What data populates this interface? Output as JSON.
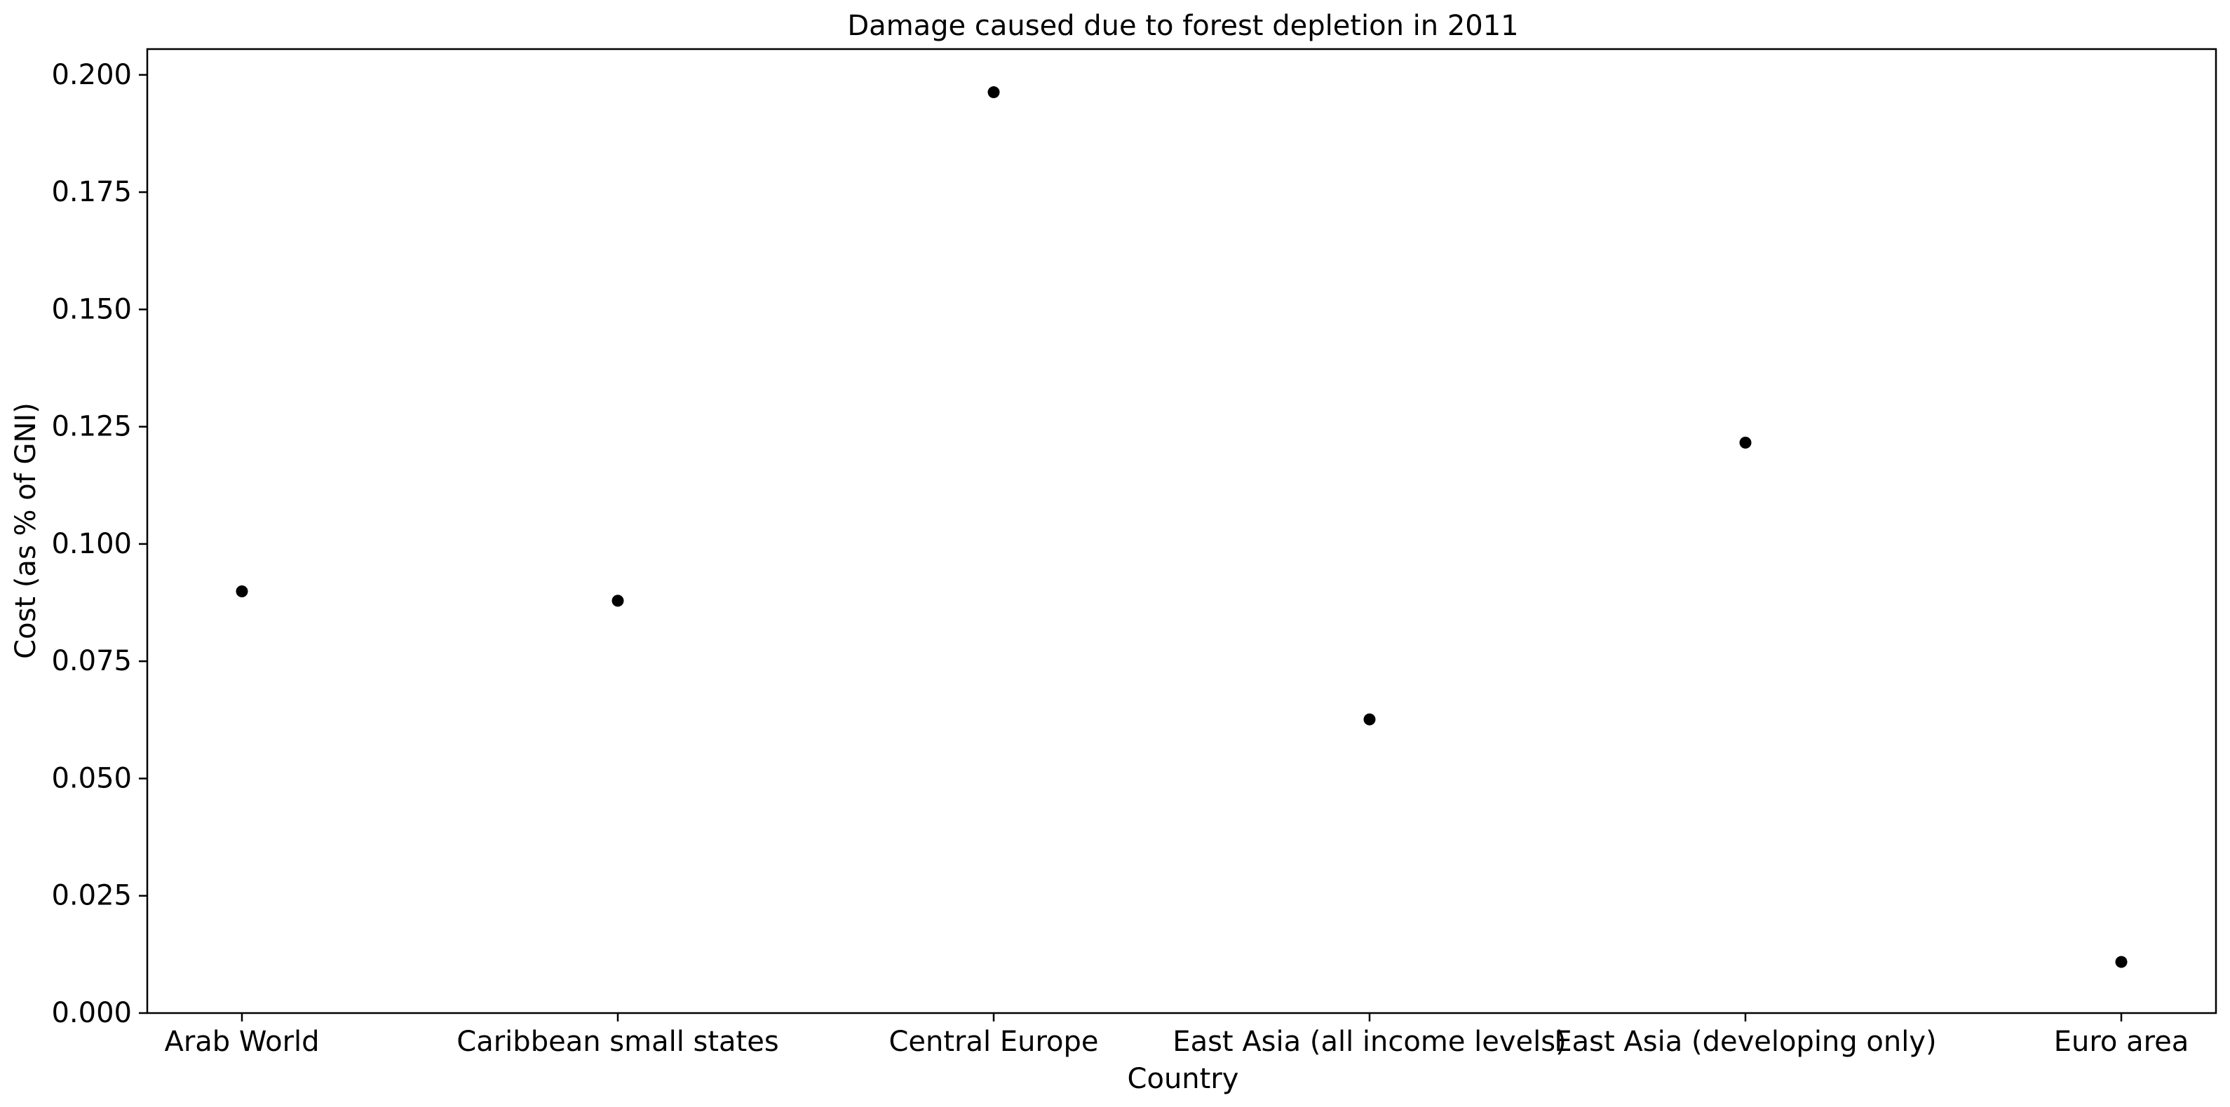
{
  "chart_data": {
    "type": "scatter",
    "title": "Damage caused due to forest depletion in 2011",
    "xlabel": "Country",
    "ylabel": "Cost (as % of GNI)",
    "categories": [
      "Arab World",
      "Caribbean small states",
      "Central Europe",
      "East Asia (all income levels)",
      "East Asia (developing only)",
      "Euro area"
    ],
    "values": [
      0.0899,
      0.0879,
      0.1963,
      0.0626,
      0.1216,
      0.0109
    ],
    "ylim": [
      0,
      0.2055
    ],
    "yticks": [
      0.0,
      0.025,
      0.05,
      0.075,
      0.1,
      0.125,
      0.15,
      0.175,
      0.2
    ],
    "ytick_labels": [
      "0.000",
      "0.025",
      "0.050",
      "0.075",
      "0.100",
      "0.125",
      "0.150",
      "0.175",
      "0.200"
    ],
    "grid": false,
    "marker_color": "#000000"
  }
}
